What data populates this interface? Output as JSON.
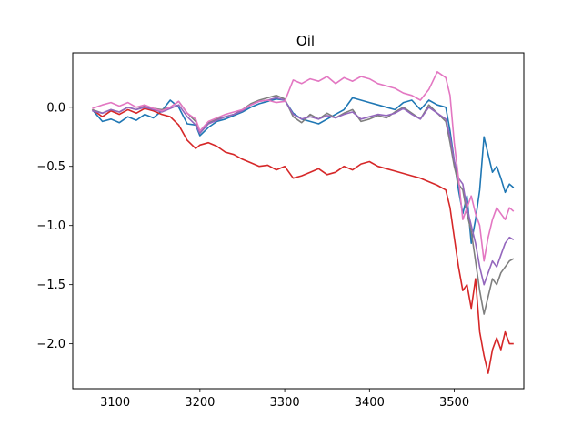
{
  "chart_data": {
    "type": "line",
    "title": "Oil",
    "xlabel": "",
    "ylabel": "",
    "xlim": [
      3050,
      3582
    ],
    "ylim": [
      -2.38,
      0.46
    ],
    "xticks": [
      3100,
      3200,
      3300,
      3400,
      3500
    ],
    "yticks": [
      0.0,
      -0.5,
      -1.0,
      -1.5,
      -2.0
    ],
    "xtick_labels": [
      "3100",
      "3200",
      "3300",
      "3400",
      "3500"
    ],
    "ytick_labels": [
      "0.0",
      "−0.5",
      "−1.0",
      "−1.5",
      "−2.0"
    ],
    "grid": false,
    "legend": "none",
    "x": [
      3073,
      3085,
      3095,
      3105,
      3115,
      3125,
      3135,
      3145,
      3155,
      3165,
      3175,
      3185,
      3195,
      3200,
      3210,
      3220,
      3230,
      3240,
      3250,
      3260,
      3270,
      3280,
      3290,
      3300,
      3310,
      3320,
      3330,
      3340,
      3350,
      3360,
      3370,
      3380,
      3390,
      3400,
      3410,
      3420,
      3430,
      3440,
      3450,
      3460,
      3470,
      3480,
      3490,
      3495,
      3500,
      3505,
      3510,
      3515,
      3520,
      3525,
      3530,
      3535,
      3540,
      3545,
      3550,
      3555,
      3560,
      3565,
      3570
    ],
    "series": [
      {
        "color": "#1f77b4",
        "values": [
          -0.02,
          -0.12,
          -0.1,
          -0.13,
          -0.08,
          -0.11,
          -0.06,
          -0.09,
          -0.03,
          0.06,
          0.0,
          -0.14,
          -0.15,
          -0.24,
          -0.17,
          -0.12,
          -0.1,
          -0.07,
          -0.04,
          0.0,
          0.03,
          0.05,
          0.07,
          0.06,
          -0.05,
          -0.1,
          -0.12,
          -0.14,
          -0.1,
          -0.06,
          -0.02,
          0.08,
          0.06,
          0.04,
          0.02,
          0.0,
          -0.02,
          0.04,
          0.06,
          -0.02,
          0.06,
          0.02,
          0.0,
          -0.2,
          -0.45,
          -0.7,
          -0.9,
          -0.75,
          -1.15,
          -0.95,
          -0.7,
          -0.25,
          -0.4,
          -0.55,
          -0.5,
          -0.6,
          -0.72,
          -0.65,
          -0.68
        ]
      },
      {
        "color": "#d62728",
        "values": [
          -0.02,
          -0.08,
          -0.03,
          -0.06,
          -0.02,
          -0.05,
          -0.01,
          -0.03,
          -0.06,
          -0.08,
          -0.15,
          -0.28,
          -0.35,
          -0.32,
          -0.3,
          -0.33,
          -0.38,
          -0.4,
          -0.44,
          -0.47,
          -0.5,
          -0.49,
          -0.53,
          -0.5,
          -0.6,
          -0.58,
          -0.55,
          -0.52,
          -0.57,
          -0.55,
          -0.5,
          -0.53,
          -0.48,
          -0.46,
          -0.5,
          -0.52,
          -0.54,
          -0.56,
          -0.58,
          -0.6,
          -0.63,
          -0.66,
          -0.7,
          -0.85,
          -1.1,
          -1.35,
          -1.55,
          -1.5,
          -1.7,
          -1.45,
          -1.9,
          -2.1,
          -2.25,
          -2.05,
          -1.95,
          -2.05,
          -1.9,
          -2.0,
          -2.0
        ]
      },
      {
        "color": "#7f7f7f",
        "values": [
          -0.02,
          -0.05,
          -0.02,
          -0.04,
          0.0,
          -0.02,
          0.01,
          -0.01,
          -0.02,
          0.0,
          0.05,
          -0.05,
          -0.12,
          -0.22,
          -0.13,
          -0.1,
          -0.08,
          -0.06,
          -0.02,
          0.03,
          0.06,
          0.08,
          0.1,
          0.07,
          -0.08,
          -0.13,
          -0.06,
          -0.1,
          -0.05,
          -0.09,
          -0.05,
          -0.02,
          -0.12,
          -0.1,
          -0.07,
          -0.09,
          -0.04,
          0.0,
          -0.05,
          -0.1,
          0.02,
          -0.05,
          -0.12,
          -0.3,
          -0.5,
          -0.65,
          -0.7,
          -0.9,
          -1.05,
          -1.3,
          -1.55,
          -1.75,
          -1.6,
          -1.45,
          -1.5,
          -1.4,
          -1.35,
          -1.3,
          -1.28
        ]
      },
      {
        "color": "#9467bd",
        "values": [
          -0.03,
          -0.05,
          -0.02,
          -0.04,
          0.0,
          -0.02,
          0.0,
          -0.02,
          -0.04,
          -0.01,
          0.02,
          -0.08,
          -0.15,
          -0.22,
          -0.14,
          -0.11,
          -0.08,
          -0.06,
          -0.03,
          0.02,
          0.05,
          0.06,
          0.08,
          0.06,
          -0.06,
          -0.1,
          -0.08,
          -0.1,
          -0.07,
          -0.09,
          -0.06,
          -0.04,
          -0.1,
          -0.08,
          -0.06,
          -0.07,
          -0.05,
          -0.01,
          -0.06,
          -0.1,
          0.0,
          -0.05,
          -0.1,
          -0.25,
          -0.45,
          -0.6,
          -0.65,
          -0.85,
          -1.0,
          -1.15,
          -1.35,
          -1.5,
          -1.4,
          -1.3,
          -1.35,
          -1.25,
          -1.15,
          -1.1,
          -1.12
        ]
      },
      {
        "color": "#e377c2",
        "values": [
          -0.01,
          0.02,
          0.04,
          0.01,
          0.04,
          0.0,
          0.02,
          -0.01,
          -0.03,
          0.0,
          0.05,
          -0.05,
          -0.1,
          -0.2,
          -0.12,
          -0.09,
          -0.06,
          -0.04,
          -0.02,
          0.02,
          0.05,
          0.06,
          0.04,
          0.05,
          0.23,
          0.2,
          0.24,
          0.22,
          0.26,
          0.2,
          0.25,
          0.22,
          0.26,
          0.24,
          0.2,
          0.18,
          0.16,
          0.12,
          0.1,
          0.06,
          0.15,
          0.3,
          0.25,
          0.1,
          -0.3,
          -0.6,
          -0.95,
          -0.85,
          -0.75,
          -0.9,
          -1.0,
          -1.3,
          -1.1,
          -0.95,
          -0.85,
          -0.9,
          -0.95,
          -0.85,
          -0.88
        ]
      }
    ]
  }
}
